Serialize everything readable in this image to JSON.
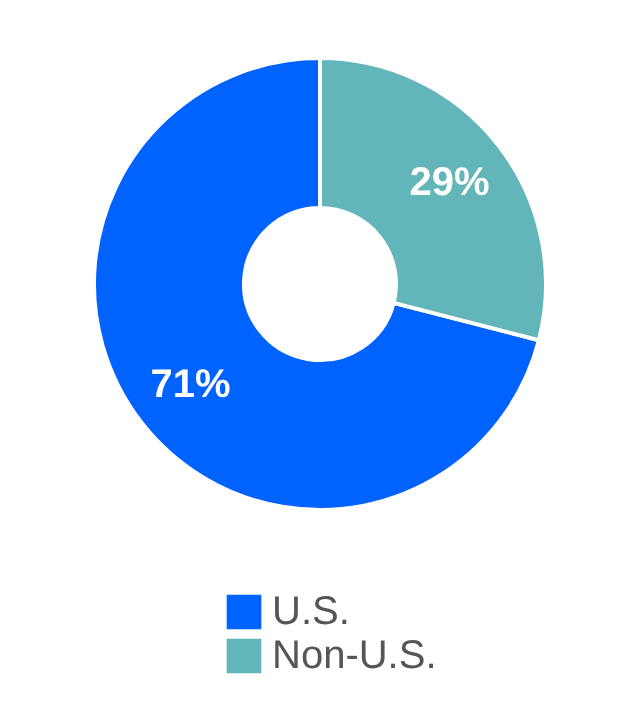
{
  "chart_data": {
    "type": "donut",
    "categories": [
      "U.S.",
      "Non-U.S."
    ],
    "values": [
      71,
      29
    ],
    "colors": [
      "#0062ff",
      "#62b5b8"
    ],
    "value_labels": [
      "71%",
      "29%"
    ],
    "legend": "bottom"
  }
}
